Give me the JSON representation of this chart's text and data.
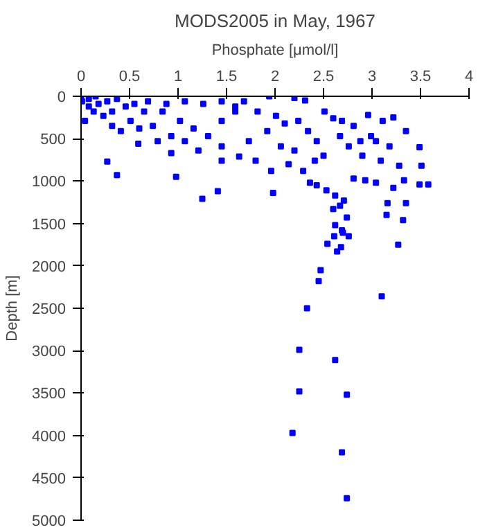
{
  "chart_data": {
    "type": "scatter",
    "title": "MODS2005 in May, 1967",
    "xlabel": "Phosphate [μmol/l]",
    "ylabel": "Depth [m]",
    "xlim": [
      0,
      4
    ],
    "ylim": [
      5000,
      0
    ],
    "xticks": [
      0,
      0.5,
      1,
      1.5,
      2,
      2.5,
      3,
      3.5,
      4
    ],
    "yticks": [
      0,
      500,
      1000,
      1500,
      2000,
      2500,
      3000,
      3500,
      4000,
      4500,
      5000
    ],
    "grid": false,
    "marker": "square",
    "series": [
      {
        "color": "#0000ff",
        "x": [
          2.33,
          2.25,
          2.62,
          2.25,
          2.74,
          2.18,
          2.69,
          2.74,
          3.1,
          2.47,
          2.45,
          2.54,
          2.64,
          2.68,
          2.61,
          2.7,
          2.76,
          3.27,
          0.27,
          0.37,
          0.98,
          1.25,
          1.41,
          1.98,
          2.31,
          2.2,
          1.94,
          0.59,
          0.93,
          1.21,
          1.45,
          1.63,
          1.8,
          1.96,
          2.14,
          2.29,
          2.36,
          2.43,
          2.53,
          2.62,
          2.67,
          2.71,
          2.6,
          2.62,
          2.69,
          2.74,
          2.51,
          2.6,
          2.69,
          2.81,
          2.96,
          3.11,
          3.22,
          3.35,
          3.04,
          3.18,
          3.49,
          2.9,
          3.09,
          3.28,
          3.51,
          3.58,
          3.49,
          3.33,
          3.22,
          3.35,
          3.16,
          3.15,
          3.32,
          2.93,
          3.04,
          2.81,
          2.43,
          2.34,
          2.24,
          2.1,
          2.01,
          1.82,
          1.68,
          1.59,
          1.45,
          1.31,
          1.16,
          1.02,
          0.93,
          0.84,
          0.74,
          0.65,
          0.51,
          0.41,
          0.32,
          0.23,
          0.13,
          0.04,
          0.01,
          0.08,
          0.18,
          0.27,
          0.37,
          0.46,
          0.55,
          0.69,
          0.88,
          1.07,
          1.26,
          1.45,
          1.59,
          0.08,
          0.15,
          0.0,
          0.32,
          0.6,
          0.79,
          1.07,
          1.45,
          1.73,
          1.92,
          2.06,
          2.2,
          2.41,
          2.5,
          2.76,
          2.88,
          2.99,
          2.67
        ],
        "values": [
          2500,
          2990,
          3110,
          3480,
          3520,
          3970,
          4200,
          4740,
          2360,
          2050,
          2180,
          1740,
          1830,
          1780,
          1650,
          1610,
          1650,
          1750,
          770,
          930,
          950,
          1210,
          1120,
          1140,
          50,
          20,
          0,
          560,
          670,
          640,
          760,
          710,
          760,
          880,
          800,
          880,
          1020,
          1050,
          1110,
          1170,
          1290,
          1230,
          1330,
          1520,
          1580,
          1430,
          180,
          260,
          290,
          350,
          220,
          290,
          250,
          410,
          530,
          590,
          600,
          700,
          760,
          820,
          820,
          1040,
          1040,
          990,
          1080,
          1260,
          1260,
          1400,
          1460,
          990,
          1020,
          970,
          530,
          410,
          290,
          320,
          230,
          180,
          60,
          180,
          290,
          470,
          380,
          290,
          470,
          180,
          350,
          180,
          290,
          410,
          350,
          230,
          180,
          290,
          60,
          30,
          90,
          60,
          30,
          120,
          90,
          60,
          90,
          60,
          90,
          60,
          120,
          120,
          0,
          10,
          180,
          380,
          530,
          530,
          590,
          530,
          410,
          590,
          640,
          760,
          700,
          590,
          530,
          470,
          470
        ]
      }
    ]
  }
}
